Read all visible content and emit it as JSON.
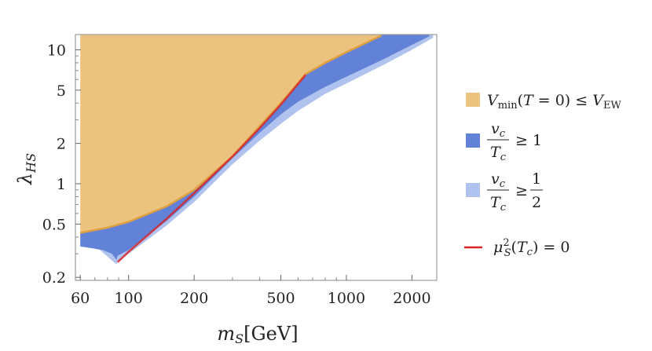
{
  "chart_data": {
    "type": "area",
    "xlabel": "m_S[GeV]",
    "ylabel": "λ_HS",
    "xscale": "log",
    "yscale": "log",
    "xlim": [
      57,
      2600
    ],
    "ylim": [
      0.19,
      13
    ],
    "x_ticks": [
      60,
      100,
      200,
      500,
      1000,
      2000
    ],
    "y_ticks": [
      0.2,
      0.5,
      1,
      2,
      5,
      10
    ],
    "y_tick_labels": [
      "0.2",
      "0.5",
      "1",
      "2",
      "5",
      "10"
    ],
    "grid": false,
    "legend_position": "right",
    "colors": {
      "vmin": "#ebc37e",
      "vmin_edge": "#e0a040",
      "strong": "#6282d8",
      "weak": "#b0c2ee",
      "mu": "#d62728"
    },
    "series": [
      {
        "name": "V_min(T=0) ≤ V_EW",
        "kind": "region_above",
        "x": [
          60,
          80,
          100,
          150,
          200,
          300,
          400,
          500,
          650,
          800,
          1000,
          1450
        ],
        "y": [
          0.43,
          0.47,
          0.52,
          0.68,
          0.9,
          1.6,
          2.7,
          4.0,
          6.6,
          8.0,
          9.6,
          12.8
        ]
      },
      {
        "name": "v_c/T_c ≥ 1",
        "kind": "band_lower",
        "x": [
          60,
          68,
          76,
          84,
          88,
          89,
          100,
          150,
          200,
          300,
          400,
          500,
          600,
          700,
          800,
          1000,
          1500,
          2000,
          2400
        ],
        "y": [
          0.34,
          0.33,
          0.32,
          0.3,
          0.27,
          0.29,
          0.32,
          0.53,
          0.8,
          1.55,
          2.4,
          3.3,
          4.1,
          4.7,
          5.3,
          6.3,
          8.6,
          10.9,
          12.6
        ]
      },
      {
        "name": "v_c/T_c ≥ 1/2",
        "kind": "band_lower",
        "x": [
          88,
          89,
          100,
          150,
          200,
          300,
          400,
          500,
          600,
          700,
          800,
          1000,
          1500,
          2000,
          2500
        ],
        "y": [
          0.25,
          0.26,
          0.3,
          0.49,
          0.73,
          1.4,
          2.1,
          2.8,
          3.5,
          4.1,
          4.7,
          5.6,
          7.8,
          10.0,
          12.3
        ]
      },
      {
        "name": "μ_S^2(T_c) = 0",
        "kind": "line",
        "x": [
          89,
          100,
          150,
          200,
          300,
          400,
          500,
          650
        ],
        "y": [
          0.26,
          0.31,
          0.55,
          0.85,
          1.6,
          2.6,
          3.9,
          6.5
        ]
      }
    ]
  }
}
